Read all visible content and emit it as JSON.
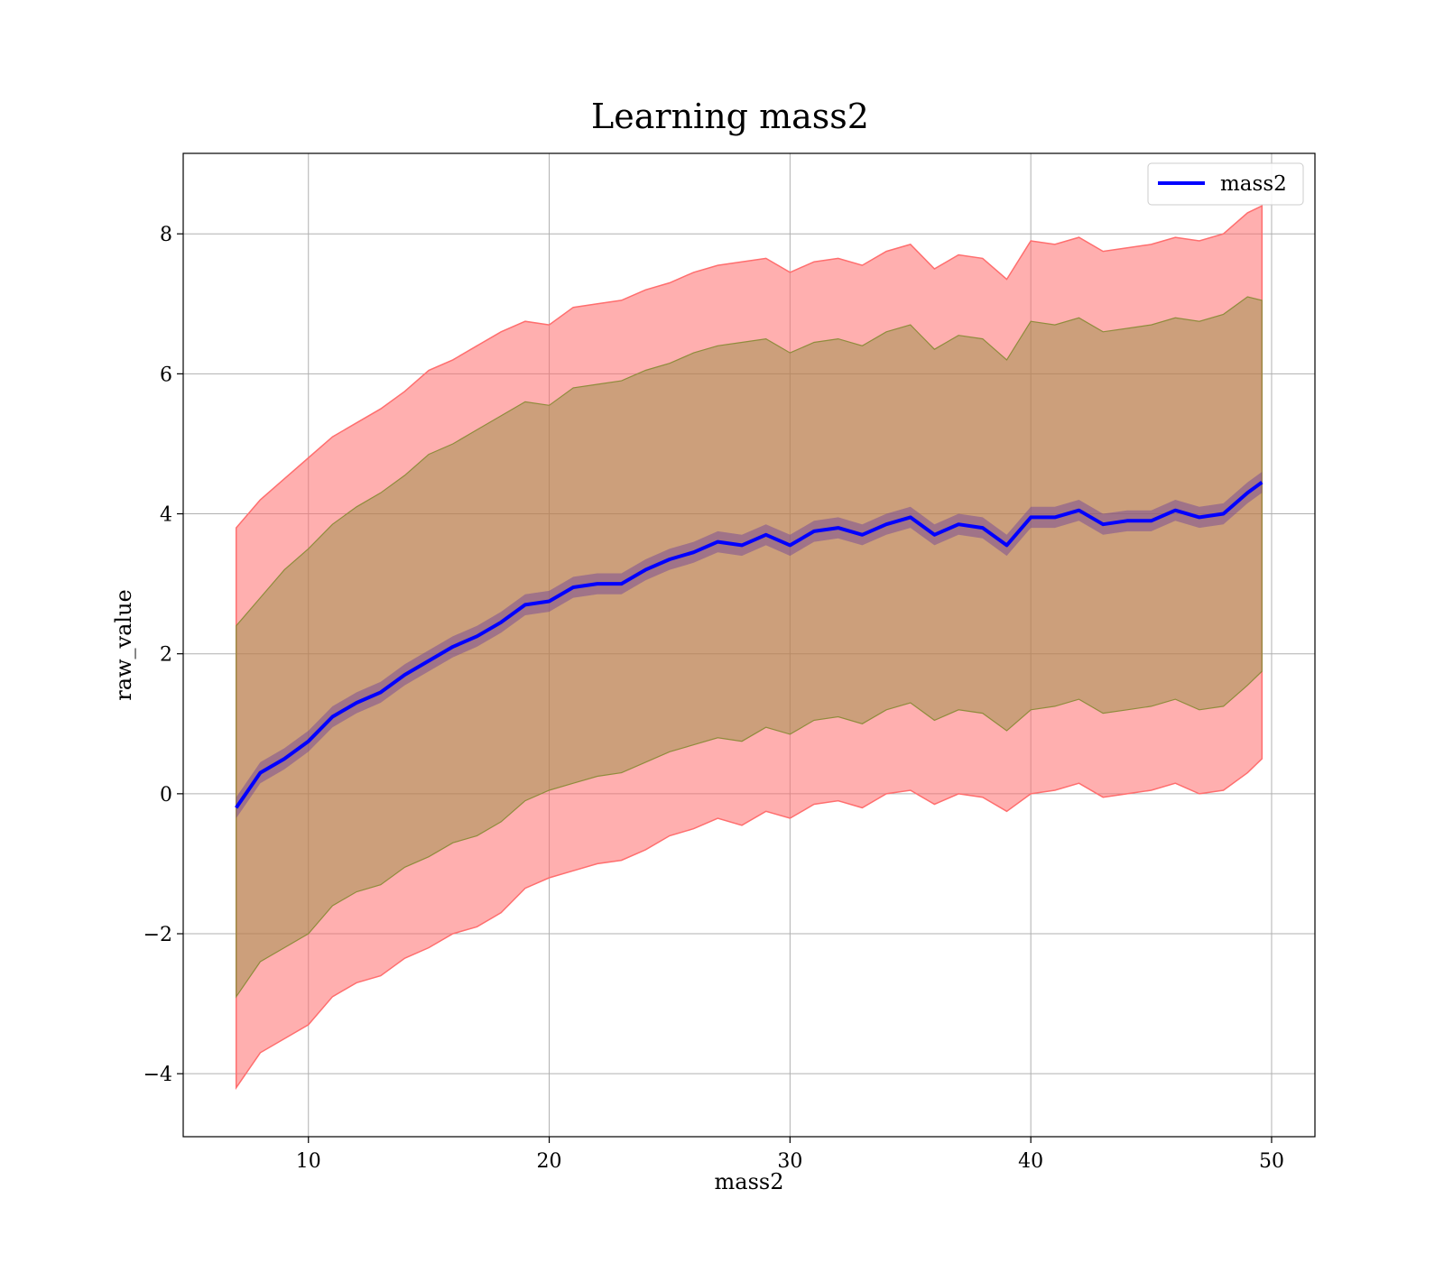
{
  "chart_data": {
    "type": "area",
    "title": "Learning mass2",
    "xlabel": "mass2",
    "ylabel": "raw_value",
    "xlim": [
      4.8,
      51.8
    ],
    "ylim": [
      -4.9,
      9.15
    ],
    "x_ticks": [
      10,
      20,
      30,
      40,
      50
    ],
    "y_ticks": [
      -4,
      -2,
      0,
      2,
      4,
      6,
      8
    ],
    "x_tick_labels": [
      "10",
      "20",
      "30",
      "40",
      "50"
    ],
    "y_tick_labels": [
      "−4",
      "−2",
      "0",
      "2",
      "4",
      "6",
      "8"
    ],
    "grid": true,
    "legend": {
      "position": "top-right",
      "entries": [
        "mass2"
      ]
    },
    "colors": {
      "mean": "#0000ff",
      "outer_band": "#ff6e6e",
      "inner_band": "#8f8c3c",
      "mean_band": "#6a3d9a"
    },
    "x": [
      7.0,
      8.0,
      9.0,
      10.0,
      11.0,
      12.0,
      13.0,
      14.0,
      15.0,
      16.0,
      17.0,
      18.0,
      19.0,
      20.0,
      21.0,
      22.0,
      23.0,
      24.0,
      25.0,
      26.0,
      27.0,
      28.0,
      29.0,
      30.0,
      31.0,
      32.0,
      33.0,
      34.0,
      35.0,
      36.0,
      37.0,
      38.0,
      39.0,
      40.0,
      41.0,
      42.0,
      43.0,
      44.0,
      45.0,
      46.0,
      47.0,
      48.0,
      49.0,
      49.6
    ],
    "series": [
      {
        "name": "mass2",
        "role": "mean",
        "values": [
          -0.2,
          0.3,
          0.5,
          0.75,
          1.1,
          1.3,
          1.45,
          1.7,
          1.9,
          2.1,
          2.25,
          2.45,
          2.7,
          2.75,
          2.95,
          3.0,
          3.0,
          3.2,
          3.35,
          3.45,
          3.6,
          3.55,
          3.7,
          3.55,
          3.75,
          3.8,
          3.7,
          3.85,
          3.95,
          3.7,
          3.85,
          3.8,
          3.55,
          3.95,
          3.95,
          4.05,
          3.85,
          3.9,
          3.9,
          4.05,
          3.95,
          4.0,
          4.3,
          4.45
        ]
      },
      {
        "name": "",
        "role": "outer-band-upper",
        "values": [
          3.8,
          4.2,
          4.5,
          4.8,
          5.1,
          5.3,
          5.5,
          5.75,
          6.05,
          6.2,
          6.4,
          6.6,
          6.75,
          6.7,
          6.95,
          7.0,
          7.05,
          7.2,
          7.3,
          7.45,
          7.55,
          7.6,
          7.65,
          7.45,
          7.6,
          7.65,
          7.55,
          7.75,
          7.85,
          7.5,
          7.7,
          7.65,
          7.35,
          7.9,
          7.85,
          7.95,
          7.75,
          7.8,
          7.85,
          7.95,
          7.9,
          8.0,
          8.3,
          8.4
        ]
      },
      {
        "name": "",
        "role": "outer-band-lower",
        "values": [
          -4.2,
          -3.7,
          -3.5,
          -3.3,
          -2.9,
          -2.7,
          -2.6,
          -2.35,
          -2.2,
          -2.0,
          -1.9,
          -1.7,
          -1.35,
          -1.2,
          -1.1,
          -1.0,
          -0.95,
          -0.8,
          -0.6,
          -0.5,
          -0.35,
          -0.45,
          -0.25,
          -0.35,
          -0.15,
          -0.1,
          -0.2,
          0.0,
          0.05,
          -0.15,
          0.0,
          -0.05,
          -0.25,
          0.0,
          0.05,
          0.15,
          -0.05,
          0.0,
          0.05,
          0.15,
          0.0,
          0.05,
          0.3,
          0.5
        ]
      },
      {
        "name": "",
        "role": "inner-band-upper",
        "values": [
          2.4,
          2.8,
          3.2,
          3.5,
          3.85,
          4.1,
          4.3,
          4.55,
          4.85,
          5.0,
          5.2,
          5.4,
          5.6,
          5.55,
          5.8,
          5.85,
          5.9,
          6.05,
          6.15,
          6.3,
          6.4,
          6.45,
          6.5,
          6.3,
          6.45,
          6.5,
          6.4,
          6.6,
          6.7,
          6.35,
          6.55,
          6.5,
          6.2,
          6.75,
          6.7,
          6.8,
          6.6,
          6.65,
          6.7,
          6.8,
          6.75,
          6.85,
          7.1,
          7.05
        ]
      },
      {
        "name": "",
        "role": "inner-band-lower",
        "values": [
          -2.9,
          -2.4,
          -2.2,
          -2.0,
          -1.6,
          -1.4,
          -1.3,
          -1.05,
          -0.9,
          -0.7,
          -0.6,
          -0.4,
          -0.1,
          0.05,
          0.15,
          0.25,
          0.3,
          0.45,
          0.6,
          0.7,
          0.8,
          0.75,
          0.95,
          0.85,
          1.05,
          1.1,
          1.0,
          1.2,
          1.3,
          1.05,
          1.2,
          1.15,
          0.9,
          1.2,
          1.25,
          1.35,
          1.15,
          1.2,
          1.25,
          1.35,
          1.2,
          1.25,
          1.55,
          1.75
        ]
      }
    ]
  }
}
